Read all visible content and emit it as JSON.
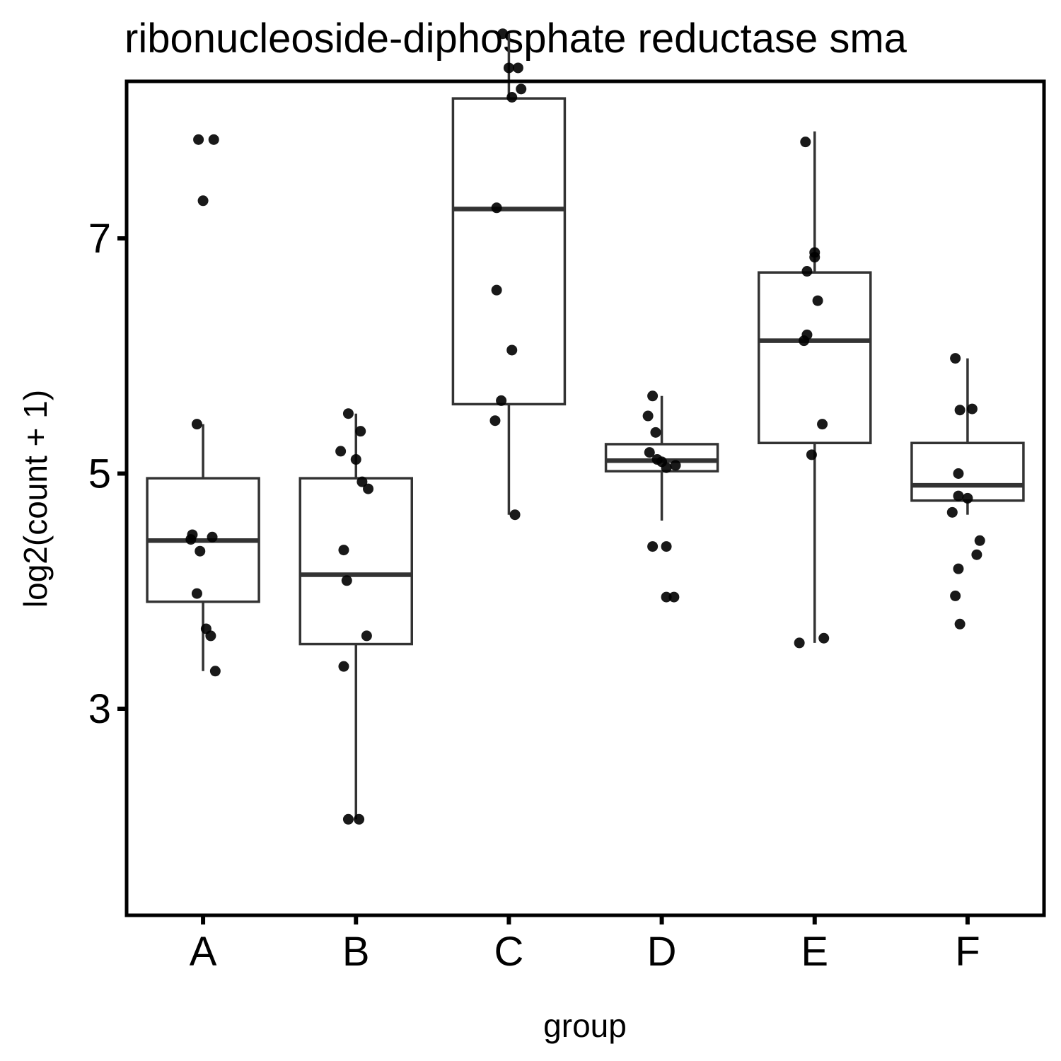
{
  "chart_data": {
    "type": "box",
    "title": "ribonucleoside-diphosphate reductase sma",
    "xlabel": "group",
    "ylabel": "log2(count + 1)",
    "categories": [
      "A",
      "B",
      "C",
      "D",
      "E",
      "F"
    ],
    "y_ticks": [
      3,
      5,
      7
    ],
    "ylim": [
      1.2,
      8.9
    ],
    "grid": false,
    "legend": "none",
    "boxes": [
      {
        "group": "A",
        "whisker_low": 3.32,
        "q1": 3.91,
        "median": 4.43,
        "q3": 4.96,
        "whisker_high": 5.42
      },
      {
        "group": "B",
        "whisker_low": 2.06,
        "q1": 3.55,
        "median": 4.14,
        "q3": 4.96,
        "whisker_high": 5.51
      },
      {
        "group": "C",
        "whisker_low": 4.65,
        "q1": 5.59,
        "median": 7.25,
        "q3": 8.19,
        "whisker_high": 8.74
      },
      {
        "group": "D",
        "whisker_low": 4.6,
        "q1": 5.02,
        "median": 5.11,
        "q3": 5.25,
        "whisker_high": 5.66
      },
      {
        "group": "E",
        "whisker_low": 3.56,
        "q1": 5.26,
        "median": 6.13,
        "q3": 6.71,
        "whisker_high": 7.91
      },
      {
        "group": "F",
        "whisker_low": 4.65,
        "q1": 4.77,
        "median": 4.9,
        "q3": 5.26,
        "whisker_high": 5.98
      }
    ],
    "points": [
      {
        "group": "A",
        "x": -0.03,
        "y": 7.84
      },
      {
        "group": "A",
        "x": 0.07,
        "y": 7.84
      },
      {
        "group": "A",
        "x": 0.0,
        "y": 7.32
      },
      {
        "group": "A",
        "x": -0.04,
        "y": 5.42
      },
      {
        "group": "A",
        "x": -0.07,
        "y": 4.48
      },
      {
        "group": "A",
        "x": -0.08,
        "y": 4.44
      },
      {
        "group": "A",
        "x": 0.06,
        "y": 4.46
      },
      {
        "group": "A",
        "x": -0.02,
        "y": 4.34
      },
      {
        "group": "A",
        "x": -0.04,
        "y": 3.98
      },
      {
        "group": "A",
        "x": 0.02,
        "y": 3.68
      },
      {
        "group": "A",
        "x": 0.05,
        "y": 3.62
      },
      {
        "group": "A",
        "x": 0.08,
        "y": 3.32
      },
      {
        "group": "B",
        "x": -0.05,
        "y": 5.51
      },
      {
        "group": "B",
        "x": 0.03,
        "y": 5.36
      },
      {
        "group": "B",
        "x": -0.1,
        "y": 5.19
      },
      {
        "group": "B",
        "x": 0.0,
        "y": 5.12
      },
      {
        "group": "B",
        "x": 0.04,
        "y": 4.93
      },
      {
        "group": "B",
        "x": 0.08,
        "y": 4.87
      },
      {
        "group": "B",
        "x": -0.08,
        "y": 4.35
      },
      {
        "group": "B",
        "x": -0.06,
        "y": 4.09
      },
      {
        "group": "B",
        "x": 0.07,
        "y": 3.62
      },
      {
        "group": "B",
        "x": -0.08,
        "y": 3.36
      },
      {
        "group": "B",
        "x": -0.05,
        "y": 2.06
      },
      {
        "group": "B",
        "x": 0.02,
        "y": 2.06
      },
      {
        "group": "C",
        "x": -0.04,
        "y": 8.74
      },
      {
        "group": "C",
        "x": 0.0,
        "y": 8.45
      },
      {
        "group": "C",
        "x": 0.06,
        "y": 8.45
      },
      {
        "group": "C",
        "x": 0.08,
        "y": 8.27
      },
      {
        "group": "C",
        "x": 0.02,
        "y": 8.2
      },
      {
        "group": "C",
        "x": -0.08,
        "y": 7.26
      },
      {
        "group": "C",
        "x": -0.08,
        "y": 6.56
      },
      {
        "group": "C",
        "x": 0.02,
        "y": 6.05
      },
      {
        "group": "C",
        "x": -0.05,
        "y": 5.62
      },
      {
        "group": "C",
        "x": -0.09,
        "y": 5.45
      },
      {
        "group": "C",
        "x": 0.04,
        "y": 4.65
      },
      {
        "group": "D",
        "x": -0.06,
        "y": 5.66
      },
      {
        "group": "D",
        "x": -0.09,
        "y": 5.49
      },
      {
        "group": "D",
        "x": -0.04,
        "y": 5.35
      },
      {
        "group": "D",
        "x": -0.08,
        "y": 5.18
      },
      {
        "group": "D",
        "x": -0.03,
        "y": 5.12
      },
      {
        "group": "D",
        "x": 0.0,
        "y": 5.1
      },
      {
        "group": "D",
        "x": 0.03,
        "y": 5.05
      },
      {
        "group": "D",
        "x": 0.09,
        "y": 5.07
      },
      {
        "group": "D",
        "x": -0.06,
        "y": 4.38
      },
      {
        "group": "D",
        "x": 0.03,
        "y": 4.38
      },
      {
        "group": "D",
        "x": 0.03,
        "y": 3.95
      },
      {
        "group": "D",
        "x": 0.08,
        "y": 3.95
      },
      {
        "group": "E",
        "x": -0.06,
        "y": 7.82
      },
      {
        "group": "E",
        "x": 0.0,
        "y": 6.88
      },
      {
        "group": "E",
        "x": 0.0,
        "y": 6.84
      },
      {
        "group": "E",
        "x": -0.05,
        "y": 6.72
      },
      {
        "group": "E",
        "x": 0.02,
        "y": 6.47
      },
      {
        "group": "E",
        "x": -0.05,
        "y": 6.18
      },
      {
        "group": "E",
        "x": -0.07,
        "y": 6.13
      },
      {
        "group": "E",
        "x": 0.05,
        "y": 5.42
      },
      {
        "group": "E",
        "x": -0.02,
        "y": 5.16
      },
      {
        "group": "E",
        "x": -0.1,
        "y": 3.56
      },
      {
        "group": "E",
        "x": 0.06,
        "y": 3.6
      },
      {
        "group": "F",
        "x": -0.08,
        "y": 5.98
      },
      {
        "group": "F",
        "x": -0.05,
        "y": 5.54
      },
      {
        "group": "F",
        "x": 0.03,
        "y": 5.55
      },
      {
        "group": "F",
        "x": -0.06,
        "y": 5.0
      },
      {
        "group": "F",
        "x": -0.06,
        "y": 4.81
      },
      {
        "group": "F",
        "x": 0.0,
        "y": 4.79
      },
      {
        "group": "F",
        "x": -0.1,
        "y": 4.67
      },
      {
        "group": "F",
        "x": 0.08,
        "y": 4.43
      },
      {
        "group": "F",
        "x": 0.06,
        "y": 4.31
      },
      {
        "group": "F",
        "x": -0.06,
        "y": 4.19
      },
      {
        "group": "F",
        "x": -0.08,
        "y": 3.96
      },
      {
        "group": "F",
        "x": -0.05,
        "y": 3.72
      }
    ],
    "colors": {
      "box_stroke": "#333333",
      "points": "#000000",
      "frame": "#000000"
    }
  }
}
